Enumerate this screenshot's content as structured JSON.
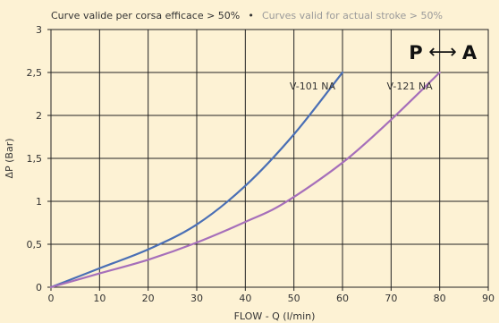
{
  "chart_data": {
    "type": "line",
    "title_it": "Curve valide per corsa efficace > 50%",
    "title_sep": "•",
    "title_en": "Curves valid for actual stroke > 50%",
    "xlabel": "FLOW - Q (l/min)",
    "ylabel": "ΔP (Bar)",
    "xlim": [
      0,
      90
    ],
    "ylim": [
      0,
      3
    ],
    "xticks": [
      0,
      10,
      20,
      30,
      40,
      50,
      60,
      70,
      80,
      90
    ],
    "yticks": [
      0,
      0.5,
      1,
      1.5,
      2,
      2.5,
      3
    ],
    "ytick_labels": [
      "0",
      "0,5",
      "1",
      "1,5",
      "2",
      "2,5",
      "3"
    ],
    "grid": true,
    "flow_direction": {
      "from": "P",
      "to": "A",
      "arrow": "⟷"
    },
    "series": [
      {
        "name": "V-101 NA",
        "color": "#4a6fb5",
        "x": [
          0,
          10,
          20,
          30,
          40,
          50,
          60
        ],
        "y": [
          0,
          0.22,
          0.44,
          0.73,
          1.18,
          1.78,
          2.5
        ]
      },
      {
        "name": "V-121 NA",
        "color": "#a66fba",
        "x": [
          0,
          10,
          20,
          30,
          40,
          48,
          60,
          70,
          80
        ],
        "y": [
          0,
          0.16,
          0.32,
          0.52,
          0.76,
          0.98,
          1.45,
          1.95,
          2.5
        ]
      }
    ]
  }
}
